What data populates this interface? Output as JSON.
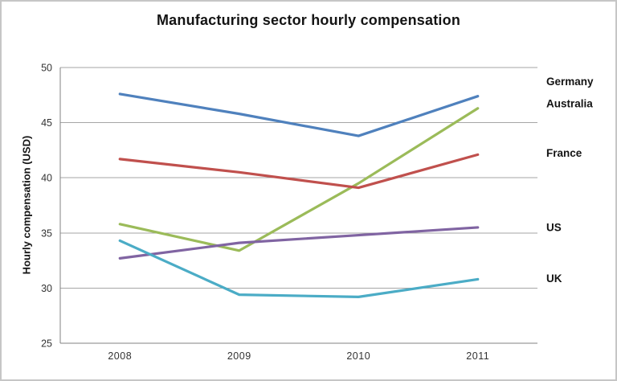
{
  "window": {
    "background": "#ffffff",
    "border_color": "#c6c6c6"
  },
  "chart_data": {
    "type": "line",
    "title": "Manufacturing sector hourly compensation",
    "xlabel": "",
    "ylabel": "Hourly compensation (USD)",
    "categories": [
      "2008",
      "2009",
      "2010",
      "2011"
    ],
    "series": [
      {
        "name": "Germany",
        "color": "#4F81BD",
        "values": [
          47.6,
          45.8,
          43.8,
          47.4
        ],
        "label_dy": -18
      },
      {
        "name": "Australia",
        "color": "#9BBB59",
        "values": [
          35.8,
          33.4,
          39.5,
          46.3
        ],
        "label_dy": -6
      },
      {
        "name": "France",
        "color": "#C0504D",
        "values": [
          41.7,
          40.5,
          39.1,
          42.1
        ],
        "label_dy": -2
      },
      {
        "name": "US",
        "color": "#8064A2",
        "values": [
          32.7,
          34.1,
          34.8,
          35.5
        ],
        "label_dy": 0
      },
      {
        "name": "UK",
        "color": "#4BACC6",
        "values": [
          34.3,
          29.4,
          29.2,
          30.8
        ],
        "label_dy": -1
      }
    ],
    "ylim": [
      25,
      50
    ],
    "ytick_step": 5,
    "yticks": [
      25,
      30,
      35,
      40,
      45,
      50
    ],
    "grid": true,
    "legend_position": "right-labels",
    "axis_color": "#808080",
    "gridline_color": "#a6a6a6",
    "tick_text_color": "#333333",
    "line_width": 3.2
  }
}
